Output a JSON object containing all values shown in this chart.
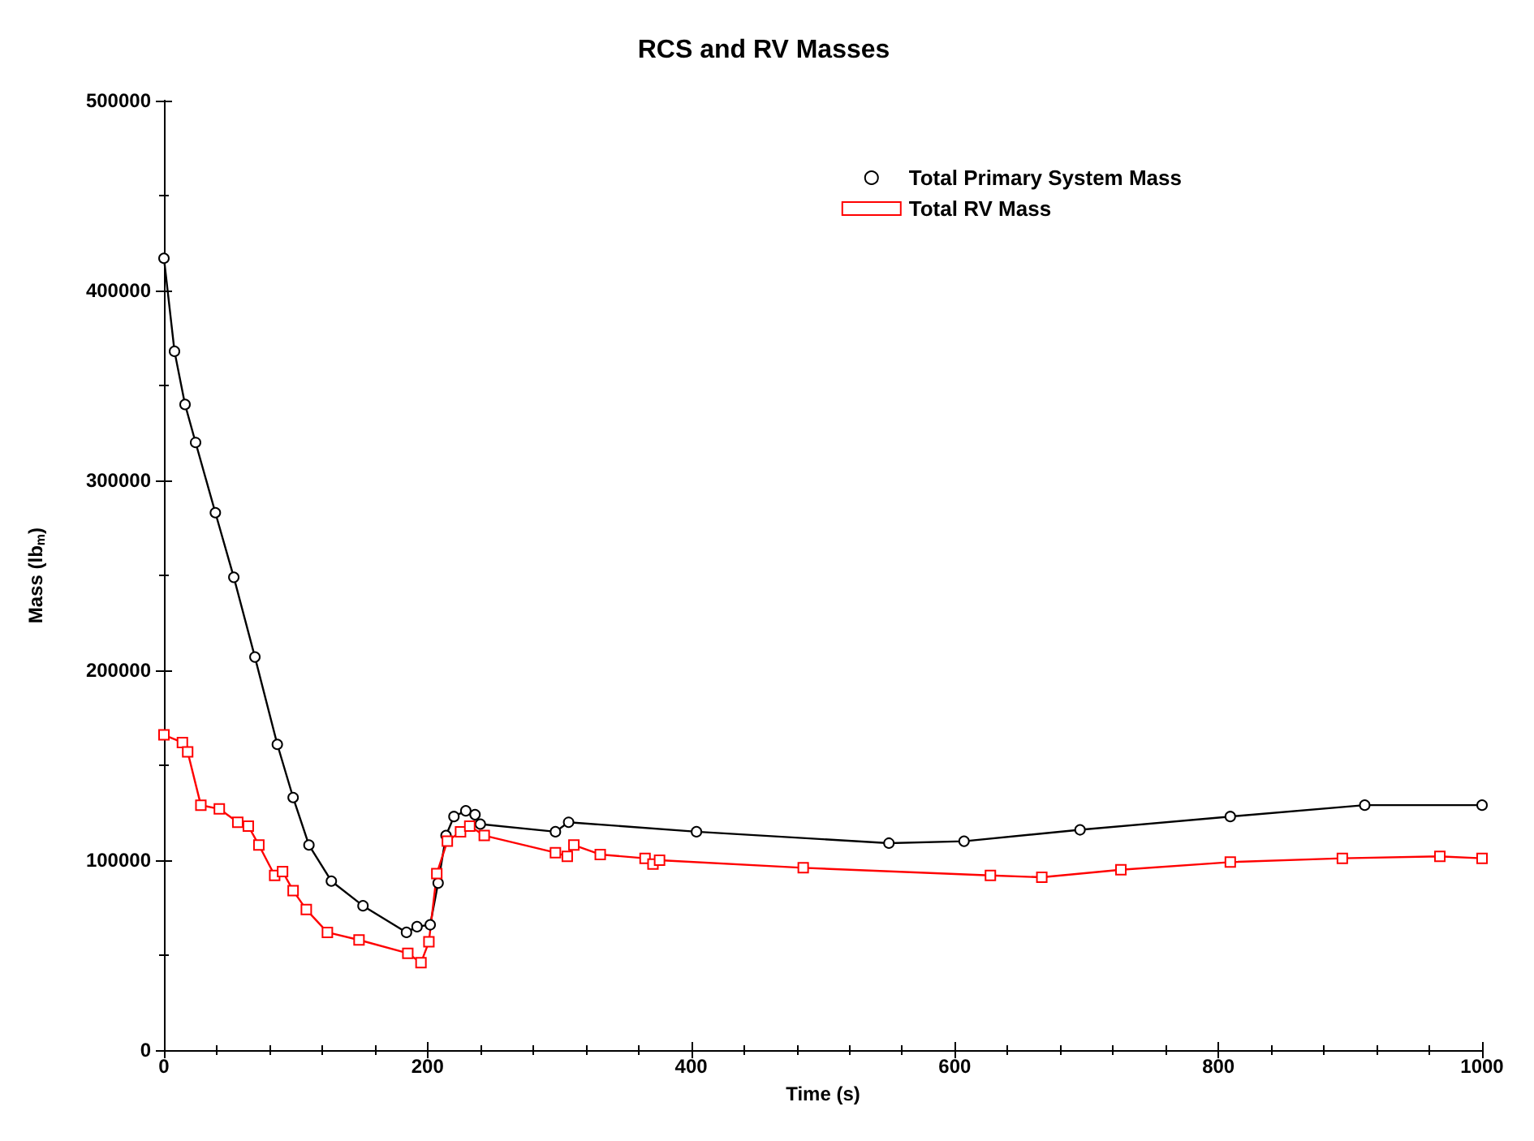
{
  "chart_data": {
    "type": "line",
    "title": "RCS and RV Masses",
    "xlabel": "Time (s)",
    "ylabel": "Mass (lb$_{m}$)",
    "xlim": [
      0,
      1000
    ],
    "xticks": [
      0,
      200,
      400,
      600,
      800,
      1000
    ],
    "ylim": [
      0,
      500000
    ],
    "yticks": [
      0,
      100000,
      200000,
      300000,
      400000,
      500000
    ],
    "grid": false,
    "legend": "top right",
    "line_style": "solid",
    "series": [
      {
        "name": "Total Primary System Mass",
        "color": "#000000",
        "marker": "circle",
        "x": [
          0,
          8,
          16,
          24,
          39,
          53,
          69,
          86,
          98,
          110,
          127,
          151,
          184,
          192,
          202,
          208,
          214,
          220,
          229,
          236,
          240,
          297,
          307,
          404,
          550,
          607,
          695,
          809,
          911,
          1000
        ],
        "values": [
          417000,
          368000,
          340000,
          320000,
          283000,
          249000,
          207000,
          161000,
          133000,
          108000,
          89000,
          76000,
          62000,
          65000,
          66000,
          88000,
          113000,
          123000,
          126000,
          124000,
          119000,
          115000,
          120000,
          115000,
          109000,
          110000,
          116000,
          123000,
          129000,
          129000
        ]
      },
      {
        "name": "Total RV Mass",
        "color": "#ff0000",
        "marker": "square",
        "x": [
          0,
          14,
          18,
          28,
          42,
          56,
          64,
          72,
          84,
          90,
          98,
          108,
          124,
          148,
          185,
          195,
          201,
          207,
          215,
          225,
          232,
          243,
          297,
          306,
          311,
          331,
          365,
          371,
          376,
          485,
          627,
          666,
          726,
          809,
          894,
          968,
          1000
        ],
        "values": [
          166000,
          162000,
          157000,
          129000,
          127000,
          120000,
          118000,
          108000,
          92000,
          94000,
          84000,
          74000,
          62000,
          58000,
          51000,
          46000,
          57000,
          93000,
          110000,
          115000,
          118000,
          113000,
          104000,
          102000,
          108000,
          103000,
          101000,
          98000,
          100000,
          96000,
          92000,
          91000,
          95000,
          99000,
          101000,
          102000,
          101000
        ]
      }
    ]
  }
}
